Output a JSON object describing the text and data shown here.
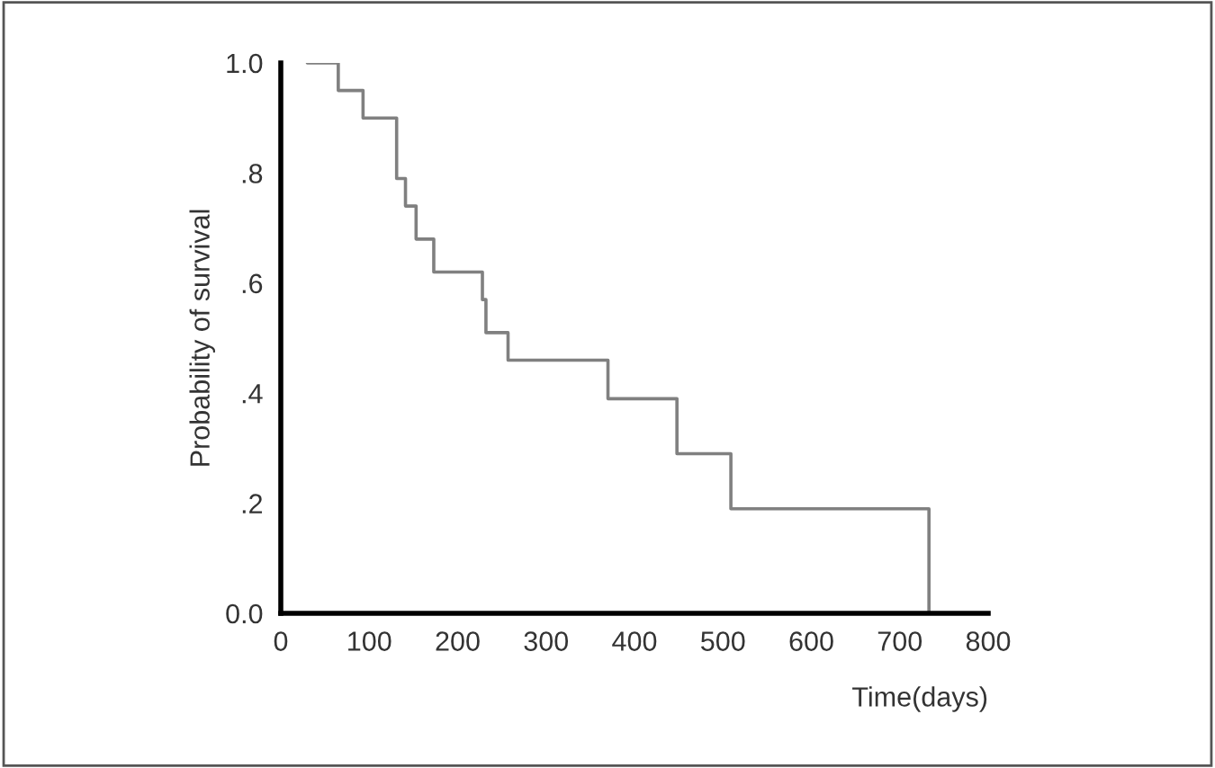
{
  "chart_data": {
    "type": "step",
    "xlabel": "Time(days)",
    "ylabel": "Probability of survival",
    "x": [
      30,
      65,
      93,
      131,
      141,
      153,
      173,
      228,
      232,
      257,
      370,
      448,
      509,
      733
    ],
    "series": [
      {
        "color": "#808080",
        "values": [
          1.0,
          0.95,
          0.9,
          0.79,
          0.74,
          0.68,
          0.62,
          0.57,
          0.51,
          0.46,
          0.39,
          0.29,
          0.19,
          0.0
        ]
      }
    ],
    "xlim": [
      0,
      800
    ],
    "xticks": [
      0,
      100,
      200,
      300,
      400,
      500,
      600,
      700,
      800
    ],
    "ylim": [
      0,
      1.0
    ],
    "yticks": [
      {
        "value": 0,
        "label": "0.0"
      },
      {
        "value": 0.2,
        "label": ".2"
      },
      {
        "value": 0.4,
        "label": ".4"
      },
      {
        "value": 0.6,
        "label": ".6"
      },
      {
        "value": 0.8,
        "label": ".8"
      },
      {
        "value": 1.0,
        "label": "1.0"
      }
    ],
    "grid": false,
    "legend": false
  }
}
